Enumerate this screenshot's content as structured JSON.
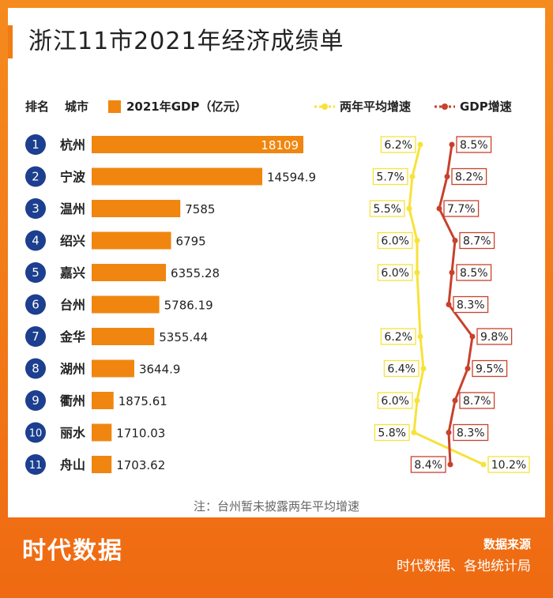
{
  "title": "浙江11市2021年经济成绩单",
  "note": "注：台州暂未披露两年平均增速",
  "footer": {
    "brand": "时代数据",
    "source_title": "数据来源",
    "source_text": "时代数据、各地统计局"
  },
  "colors": {
    "bar": "#f0860f",
    "rank_circle": "#1c3f8f",
    "two_year_line": "#f7e23a",
    "gdp_line": "#c8412c",
    "footer_bg": "#ef6a12"
  },
  "chart_data": {
    "type": "bar",
    "title": "浙江11市2021年经济成绩单",
    "headers": {
      "rank": "排名",
      "city": "城市"
    },
    "legend": {
      "gdp": "2021年GDP（亿元）",
      "two_year": "两年平均增速",
      "growth": "GDP增速"
    },
    "ranks": [
      "1",
      "2",
      "3",
      "4",
      "5",
      "6",
      "7",
      "8",
      "9",
      "10",
      "11"
    ],
    "categories": [
      "杭州",
      "宁波",
      "温州",
      "绍兴",
      "嘉兴",
      "台州",
      "金华",
      "湖州",
      "衢州",
      "丽水",
      "舟山"
    ],
    "gdp": [
      18109,
      14594.9,
      7585,
      6795,
      6355.28,
      5786.19,
      5355.44,
      3644.9,
      1875.61,
      1710.03,
      1703.62
    ],
    "gdp_labels": [
      "18109",
      "14594.9",
      "7585",
      "6795",
      "6355.28",
      "5786.19",
      "5355.44",
      "3644.9",
      "1875.61",
      "1710.03",
      "1703.62"
    ],
    "gdp_max": 18109,
    "two_year_growth": [
      6.2,
      5.7,
      5.5,
      6.0,
      6.0,
      null,
      6.2,
      6.4,
      6.0,
      5.8,
      10.2
    ],
    "two_year_labels": [
      "6.2%",
      "5.7%",
      "5.5%",
      "6.0%",
      "6.0%",
      null,
      "6.2%",
      "6.4%",
      "6.0%",
      "5.8%",
      "10.2%"
    ],
    "growth": [
      8.5,
      8.2,
      7.7,
      8.7,
      8.5,
      8.3,
      9.8,
      9.5,
      8.7,
      8.3,
      8.4
    ],
    "growth_labels": [
      "8.5%",
      "8.2%",
      "7.7%",
      "8.7%",
      "8.5%",
      "8.3%",
      "9.8%",
      "9.5%",
      "8.7%",
      "8.3%",
      "8.4%"
    ]
  }
}
